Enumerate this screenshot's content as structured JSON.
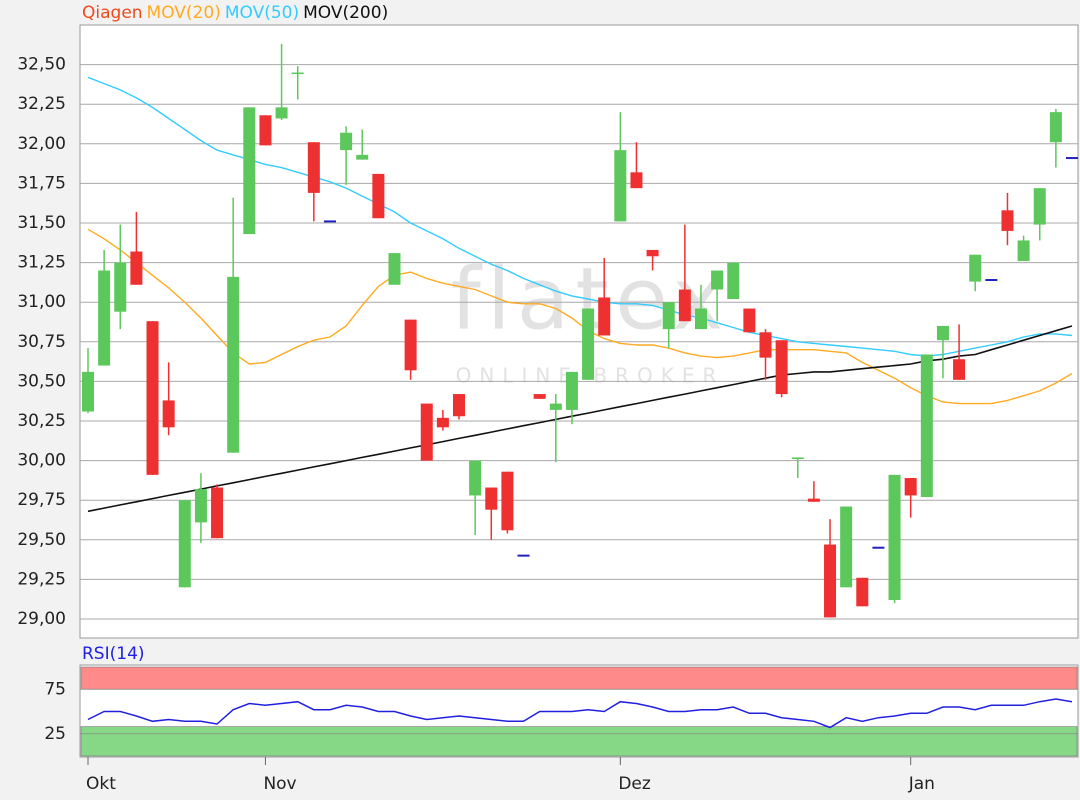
{
  "chart_data": [
    {
      "type": "candlestick",
      "categories": [
        "Okt",
        null,
        null,
        null,
        null,
        null,
        null,
        null,
        null,
        null,
        null,
        "Nov",
        null,
        null,
        null,
        null,
        null,
        null,
        null,
        null,
        null,
        null,
        null,
        null,
        null,
        null,
        null,
        null,
        null,
        null,
        null,
        null,
        null,
        "Dez",
        null,
        null,
        null,
        null,
        null,
        null,
        null,
        null,
        null,
        null,
        null,
        null,
        null,
        null,
        null,
        null,
        null,
        "Jan",
        null,
        null,
        null,
        null,
        null,
        null,
        null,
        null,
        null,
        null
      ],
      "series": [
        {
          "name": "Qiagen",
          "color": "#f04a1c",
          "up_color": "#5cc85c",
          "down_color": "#ee3030",
          "flat_color": "#2020c0",
          "open": [
            30.31,
            30.6,
            30.94,
            31.32,
            30.88,
            30.38,
            29.2,
            29.61,
            29.83,
            30.05,
            31.43,
            32.18,
            32.16,
            32.44,
            32.01,
            31.51,
            31.96,
            31.9,
            31.81,
            31.11,
            30.89,
            30.36,
            30.27,
            30.42,
            29.78,
            29.83,
            29.93,
            29.4,
            30.42,
            30.32,
            30.32,
            30.51,
            31.03,
            31.51,
            31.82,
            31.33,
            30.83,
            31.08,
            30.83,
            31.08,
            31.02,
            30.96,
            30.81,
            30.76,
            30.01,
            29.76,
            29.47,
            29.2,
            29.26,
            29.45,
            29.12,
            29.89,
            29.77,
            30.76,
            30.64,
            31.13,
            31.14,
            31.58,
            31.26,
            31.49,
            32.01,
            31.91
          ],
          "high": [
            30.71,
            31.33,
            31.49,
            31.57,
            30.88,
            30.62,
            29.75,
            29.92,
            29.85,
            31.66,
            32.23,
            32.18,
            32.63,
            32.49,
            32.01,
            31.51,
            32.11,
            32.09,
            31.81,
            31.31,
            30.89,
            30.36,
            30.32,
            30.42,
            30.0,
            29.83,
            29.93,
            29.4,
            30.42,
            30.42,
            30.56,
            30.96,
            31.28,
            32.2,
            32.01,
            31.33,
            31.0,
            31.49,
            31.11,
            31.2,
            31.25,
            30.96,
            30.83,
            30.76,
            30.02,
            29.87,
            29.63,
            29.71,
            29.26,
            29.45,
            29.91,
            29.89,
            30.67,
            30.85,
            30.86,
            31.3,
            31.14,
            31.69,
            31.42,
            31.72,
            32.22,
            31.91
          ],
          "low": [
            30.3,
            30.6,
            30.83,
            31.11,
            29.91,
            30.16,
            29.2,
            29.48,
            29.51,
            30.05,
            31.43,
            31.99,
            32.15,
            32.28,
            31.51,
            31.51,
            31.74,
            31.9,
            31.53,
            31.11,
            30.51,
            30.0,
            30.19,
            30.26,
            29.53,
            29.5,
            29.54,
            29.4,
            30.39,
            29.99,
            30.23,
            30.51,
            30.79,
            31.51,
            31.72,
            31.2,
            30.71,
            30.88,
            30.83,
            30.88,
            31.02,
            30.81,
            30.51,
            30.4,
            29.89,
            29.74,
            29.01,
            29.2,
            29.08,
            29.45,
            29.1,
            29.64,
            29.77,
            30.52,
            30.51,
            31.07,
            31.14,
            31.36,
            31.26,
            31.39,
            31.85,
            31.91
          ],
          "close": [
            30.56,
            31.2,
            31.25,
            31.11,
            29.91,
            30.21,
            29.75,
            29.82,
            29.51,
            31.16,
            32.23,
            31.99,
            32.23,
            32.45,
            31.69,
            31.51,
            32.07,
            31.93,
            31.53,
            31.31,
            30.57,
            30.0,
            30.21,
            30.28,
            30.0,
            29.69,
            29.56,
            29.4,
            30.39,
            30.36,
            30.56,
            30.96,
            30.79,
            31.96,
            31.72,
            31.29,
            31.0,
            30.88,
            30.96,
            31.2,
            31.25,
            30.81,
            30.65,
            30.42,
            30.02,
            29.74,
            29.01,
            29.71,
            29.08,
            29.45,
            29.91,
            29.78,
            30.67,
            30.85,
            30.51,
            31.3,
            31.14,
            31.45,
            31.39,
            31.72,
            32.2,
            31.91
          ]
        }
      ],
      "lines": [
        {
          "name": "MOV(20)",
          "color": "#ffaa22",
          "values": [
            31.46,
            31.4,
            31.33,
            31.25,
            31.17,
            31.09,
            31.0,
            30.9,
            30.79,
            30.68,
            30.61,
            30.62,
            30.67,
            30.72,
            30.76,
            30.78,
            30.85,
            30.98,
            31.1,
            31.17,
            31.19,
            31.15,
            31.12,
            31.1,
            31.08,
            31.04,
            31.0,
            30.99,
            30.99,
            30.96,
            30.9,
            30.82,
            30.77,
            30.74,
            30.73,
            30.73,
            30.71,
            30.68,
            30.66,
            30.65,
            30.66,
            30.68,
            30.7,
            30.7,
            30.7,
            30.7,
            30.69,
            30.68,
            30.62,
            30.57,
            30.52,
            30.46,
            30.41,
            30.37,
            30.36,
            30.36,
            30.36,
            30.38,
            30.41,
            30.44,
            30.49,
            30.55
          ]
        },
        {
          "name": "MOV(50)",
          "color": "#33ccff",
          "values": [
            32.42,
            32.38,
            32.34,
            32.29,
            32.23,
            32.16,
            32.09,
            32.02,
            31.96,
            31.93,
            31.9,
            31.87,
            31.85,
            31.82,
            31.79,
            31.76,
            31.72,
            31.67,
            31.62,
            31.57,
            31.5,
            31.45,
            31.4,
            31.34,
            31.29,
            31.24,
            31.2,
            31.15,
            31.11,
            31.07,
            31.04,
            31.02,
            31.0,
            30.99,
            30.99,
            30.98,
            30.95,
            30.92,
            30.9,
            30.87,
            30.84,
            30.81,
            30.79,
            30.77,
            30.75,
            30.74,
            30.73,
            30.72,
            30.71,
            30.7,
            30.69,
            30.67,
            30.66,
            30.67,
            30.69,
            30.71,
            30.73,
            30.75,
            30.78,
            30.8,
            30.8,
            30.79
          ]
        },
        {
          "name": "MOV(200)",
          "color": "#111111",
          "values": [
            29.68,
            29.7,
            29.72,
            29.74,
            29.76,
            29.78,
            29.8,
            29.82,
            29.84,
            29.86,
            29.88,
            29.9,
            29.92,
            29.94,
            29.96,
            29.98,
            30.0,
            30.02,
            30.04,
            30.06,
            30.08,
            30.1,
            30.12,
            30.14,
            30.16,
            30.18,
            30.2,
            30.22,
            30.24,
            30.26,
            30.28,
            30.3,
            30.32,
            30.34,
            30.36,
            30.38,
            30.4,
            30.42,
            30.44,
            30.46,
            30.48,
            30.5,
            30.52,
            30.54,
            30.55,
            30.56,
            30.56,
            30.57,
            30.58,
            30.59,
            30.6,
            30.61,
            30.63,
            30.64,
            30.66,
            30.67,
            30.7,
            30.73,
            30.76,
            30.79,
            30.82,
            30.85
          ]
        }
      ],
      "ylim": [
        28.88,
        32.75
      ],
      "yticks": [
        {
          "value": 29.0,
          "label": "29,00"
        },
        {
          "value": 29.25,
          "label": "29,25"
        },
        {
          "value": 29.5,
          "label": "29,50"
        },
        {
          "value": 29.75,
          "label": "29,75"
        },
        {
          "value": 30.0,
          "label": "30,00"
        },
        {
          "value": 30.25,
          "label": "30,25"
        },
        {
          "value": 30.5,
          "label": "30,50"
        },
        {
          "value": 30.75,
          "label": "30,75"
        },
        {
          "value": 31.0,
          "label": "31,00"
        },
        {
          "value": 31.25,
          "label": "31,25"
        },
        {
          "value": 31.5,
          "label": "31,50"
        },
        {
          "value": 31.75,
          "label": "31,75"
        },
        {
          "value": 32.0,
          "label": "32,00"
        },
        {
          "value": 32.25,
          "label": "32,25"
        },
        {
          "value": 32.5,
          "label": "32,50"
        }
      ],
      "grid": true,
      "watermark": {
        "brand": "flatex",
        "tagline": "ONLINE BROKER"
      }
    },
    {
      "type": "line",
      "title": "RSI(14)",
      "series": [
        {
          "color": "#2020e0",
          "values": [
            41,
            50,
            50,
            45,
            39,
            41,
            39,
            39,
            36,
            52,
            59,
            57,
            59,
            61,
            52,
            52,
            57,
            55,
            50,
            50,
            45,
            41,
            43,
            45,
            43,
            41,
            39,
            39,
            50,
            50,
            50,
            52,
            50,
            61,
            59,
            55,
            50,
            50,
            52,
            52,
            55,
            48,
            48,
            43,
            41,
            39,
            32,
            43,
            39,
            43,
            45,
            48,
            48,
            55,
            55,
            52,
            57,
            57,
            57,
            61,
            64,
            61
          ]
        }
      ],
      "ylim": [
        0,
        100
      ],
      "yticks": [
        25,
        75
      ],
      "bands": [
        {
          "from": 75,
          "to": 100,
          "color": "#ff8a8a"
        },
        {
          "from": 0,
          "to": 33,
          "color": "#86d886"
        }
      ]
    }
  ]
}
